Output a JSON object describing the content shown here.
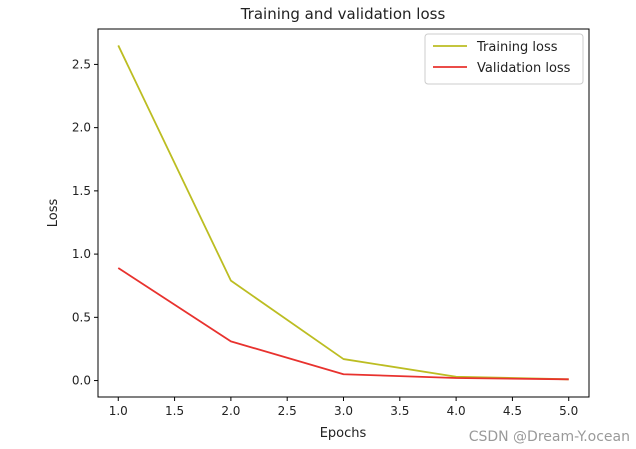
{
  "chart_data": {
    "type": "line",
    "title": "Training and validation loss",
    "xlabel": "Epochs",
    "ylabel": "Loss",
    "xlim": [
      0.82,
      5.18
    ],
    "ylim": [
      -0.13,
      2.78
    ],
    "x": [
      1.0,
      2.0,
      3.0,
      4.0,
      5.0
    ],
    "xticks": [
      1.0,
      1.5,
      2.0,
      2.5,
      3.0,
      3.5,
      4.0,
      4.5,
      5.0
    ],
    "xtick_labels": [
      "1.0",
      "1.5",
      "2.0",
      "2.5",
      "3.0",
      "3.5",
      "4.0",
      "4.5",
      "5.0"
    ],
    "yticks": [
      0.0,
      0.5,
      1.0,
      1.5,
      2.0,
      2.5
    ],
    "ytick_labels": [
      "0.0",
      "0.5",
      "1.0",
      "1.5",
      "2.0",
      "2.5"
    ],
    "grid": false,
    "legend_position": "upper-right",
    "series": [
      {
        "name": "Training loss",
        "color": "#bcbd22",
        "values": [
          2.65,
          0.79,
          0.17,
          0.03,
          0.01
        ]
      },
      {
        "name": "Validation loss",
        "color": "#e8322e",
        "values": [
          0.89,
          0.31,
          0.05,
          0.02,
          0.01
        ]
      }
    ]
  },
  "watermark": "CSDN @Dream-Y.ocean"
}
